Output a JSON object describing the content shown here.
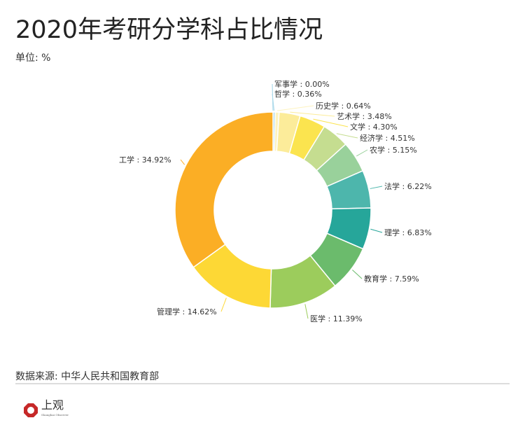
{
  "title": "2020年考研分学科占比情况",
  "unit": "单位: %",
  "source": "数据来源: 中华人民共和国教育部",
  "logo": {
    "name": "上观",
    "sub": "Shanghai Observer"
  },
  "chart_data": {
    "type": "pie",
    "variant": "donut",
    "title": "2020年考研分学科占比情况",
    "unit": "%",
    "order": "clockwise-from-top",
    "slices": [
      {
        "label": "军事学",
        "value": 0.0,
        "color": "#9fd3e6"
      },
      {
        "label": "哲学",
        "value": 0.36,
        "color": "#a8d8ea"
      },
      {
        "label": "历史学",
        "value": 0.64,
        "color": "#fdf3c0"
      },
      {
        "label": "艺术学",
        "value": 3.48,
        "color": "#fcec9a"
      },
      {
        "label": "文学",
        "value": 4.3,
        "color": "#fbe44f"
      },
      {
        "label": "经济学",
        "value": 4.51,
        "color": "#c5dd90"
      },
      {
        "label": "农学",
        "value": 5.15,
        "color": "#99d19b"
      },
      {
        "label": "法学",
        "value": 6.22,
        "color": "#4db6ac"
      },
      {
        "label": "理学",
        "value": 6.83,
        "color": "#26a69a"
      },
      {
        "label": "教育学",
        "value": 7.59,
        "color": "#6bbb6c"
      },
      {
        "label": "医学",
        "value": 11.39,
        "color": "#9ccc5c"
      },
      {
        "label": "管理学",
        "value": 14.62,
        "color": "#fdd835"
      },
      {
        "label": "工学",
        "value": 34.92,
        "color": "#fbae25"
      }
    ]
  }
}
